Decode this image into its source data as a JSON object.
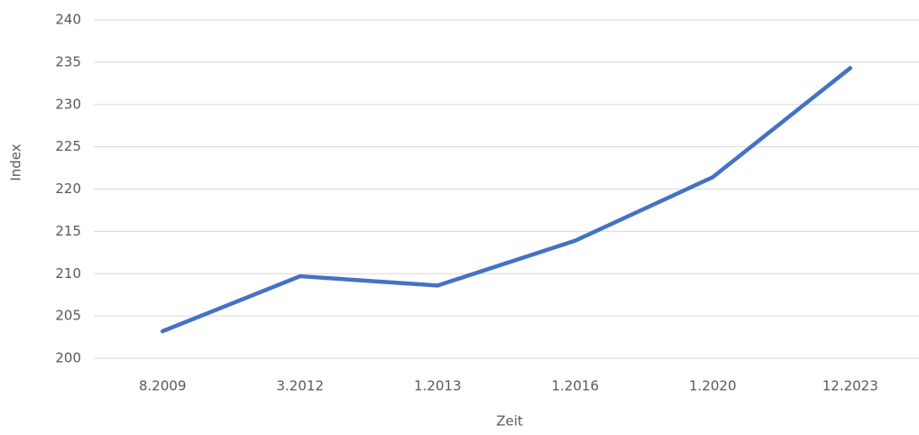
{
  "chart_data": {
    "type": "line",
    "x_label": "Zeit",
    "y_label": "Index",
    "categories": [
      "8.2009",
      "3.2012",
      "1.2013",
      "1.2016",
      "1.2020",
      "12.2023"
    ],
    "series": [
      {
        "name": "Index",
        "color": "#4472c4",
        "values": [
          203.2,
          209.7,
          208.6,
          213.9,
          221.4,
          234.3
        ]
      }
    ],
    "ylim": [
      200,
      240
    ],
    "yticks": [
      200,
      205,
      210,
      215,
      220,
      225,
      230,
      235,
      240
    ],
    "grid": true
  }
}
